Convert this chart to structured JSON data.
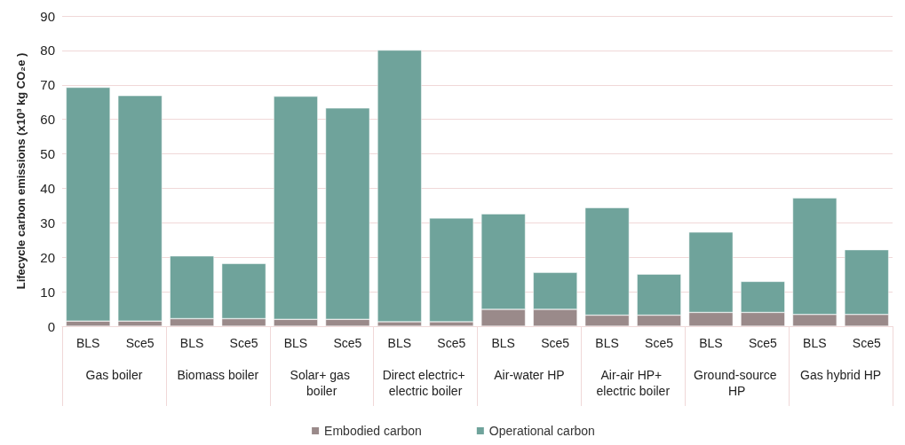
{
  "chart_data": {
    "type": "bar",
    "stacked": true,
    "ylabel": "Lifecycle carbon emissions (x10³ kg CO₂e )",
    "categories": [
      "BLS",
      "Sce5",
      "BLS",
      "Sce5",
      "BLS",
      "Sce5",
      "BLS",
      "Sce5",
      "BLS",
      "Sce5",
      "BLS",
      "Sce5",
      "BLS",
      "Sce5",
      "BLS",
      "Sce5"
    ],
    "annotations": [
      "Gas boiler",
      "Biomass boiler",
      "Solar+ gas boiler",
      "Direct electric+ electric boiler",
      "Air-water HP",
      "Air-air HP+ electric boiler",
      "Ground-source HP",
      "Gas hybrid HP"
    ],
    "series": [
      {
        "name": "Embodied carbon",
        "color": "#9a8a8a",
        "values": [
          1.5,
          1.5,
          2.2,
          2.2,
          2.0,
          2.0,
          1.3,
          1.3,
          4.9,
          4.9,
          3.2,
          3.2,
          4.0,
          4.0,
          3.4,
          3.4
        ]
      },
      {
        "name": "Operational carbon",
        "color": "#6fa39b",
        "values": [
          67.8,
          65.4,
          18.2,
          16.0,
          64.7,
          61.3,
          78.8,
          30.1,
          27.7,
          10.7,
          31.2,
          11.9,
          23.3,
          9.0,
          33.8,
          18.8
        ]
      }
    ],
    "ylim": [
      0,
      90
    ],
    "yticks": [
      0,
      10,
      20,
      30,
      40,
      50,
      60,
      70,
      80,
      90
    ],
    "grid": "y",
    "legend": "bottom"
  }
}
